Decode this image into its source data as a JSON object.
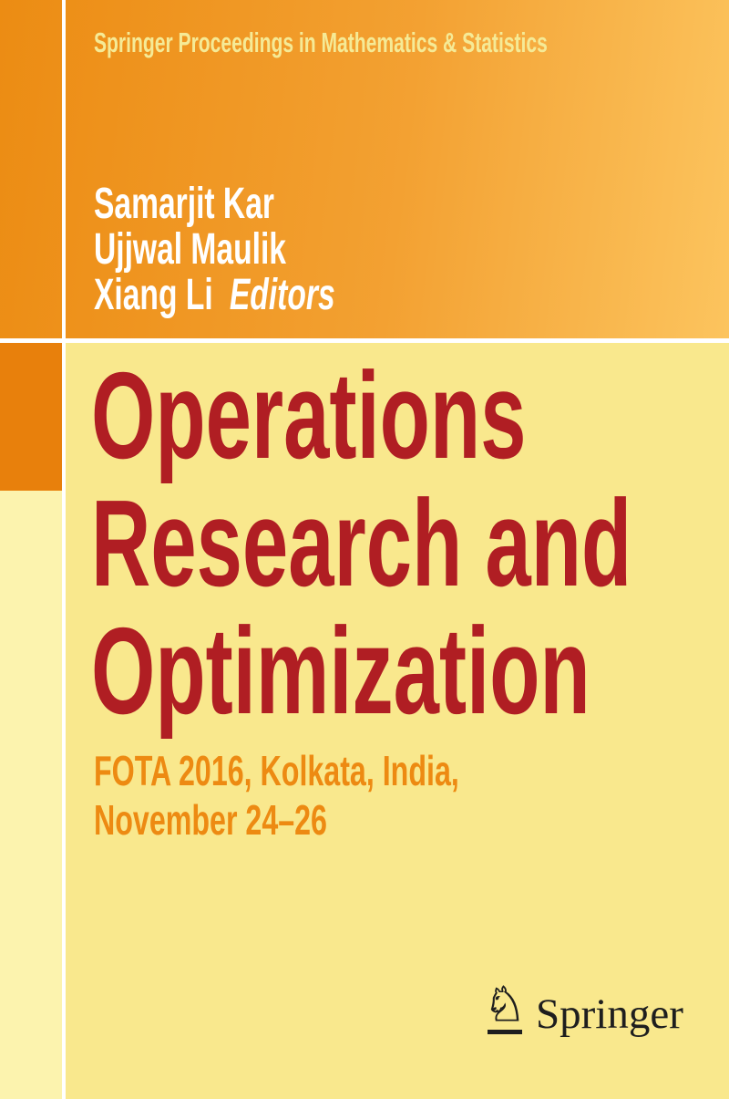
{
  "cover": {
    "series_title": "Springer Proceedings in Mathematics & Statistics",
    "editors": [
      "Samarjit Kar",
      "Ujjwal Maulik",
      "Xiang Li"
    ],
    "editors_label": "Editors",
    "title_lines": [
      "Operations",
      "Research and",
      "Optimization"
    ],
    "subtitle_lines": [
      "FOTA 2016, Kolkata, India,",
      "November 24–26"
    ],
    "publisher": "Springer",
    "publisher_icon": "springer-horse-icon",
    "horse_glyph": "♘"
  },
  "colors": {
    "orange_gradient_start": "#EC8C13",
    "orange_gradient_end": "#FCC45E",
    "accent_square_orange": "#E8800C",
    "left_strip_yellow": "#FCF3AE",
    "background_yellow": "#F9E88D",
    "divider_white": "#FFFFFF",
    "title_red": "#B01E23",
    "subtitle_orange": "#ED8A12",
    "series_title_yellow": "#F5EA96",
    "editors_white": "#FFFFFF",
    "logo_dark": "#1E1E1E"
  }
}
